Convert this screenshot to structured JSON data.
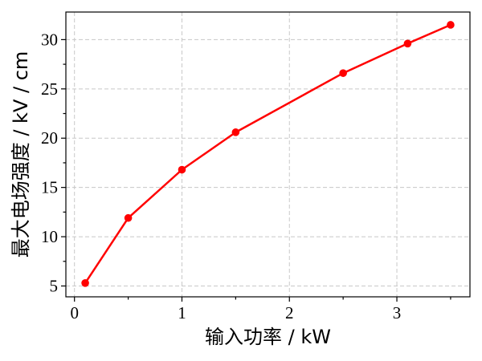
{
  "chart_data": {
    "type": "line",
    "title": "",
    "xlabel": "输入功率 / kW",
    "ylabel": "最大电场强度 / kV / cm",
    "xlim": [
      -0.08,
      3.68
    ],
    "ylim": [
      3.9,
      32.8
    ],
    "xticks": [
      0,
      1,
      2,
      3
    ],
    "xminor": [
      0.5,
      1.5,
      2.5,
      3.5
    ],
    "yticks": [
      5,
      10,
      15,
      20,
      25,
      30
    ],
    "yminor": [
      7.5,
      12.5,
      17.5,
      22.5,
      27.5
    ],
    "grid": true,
    "color": "#ff0000",
    "series": [
      {
        "x": [
          0.1,
          0.5,
          1.0,
          1.5,
          2.5,
          3.1,
          3.5
        ],
        "y": [
          5.3,
          11.9,
          16.8,
          20.6,
          26.6,
          29.6,
          31.5
        ]
      }
    ]
  }
}
